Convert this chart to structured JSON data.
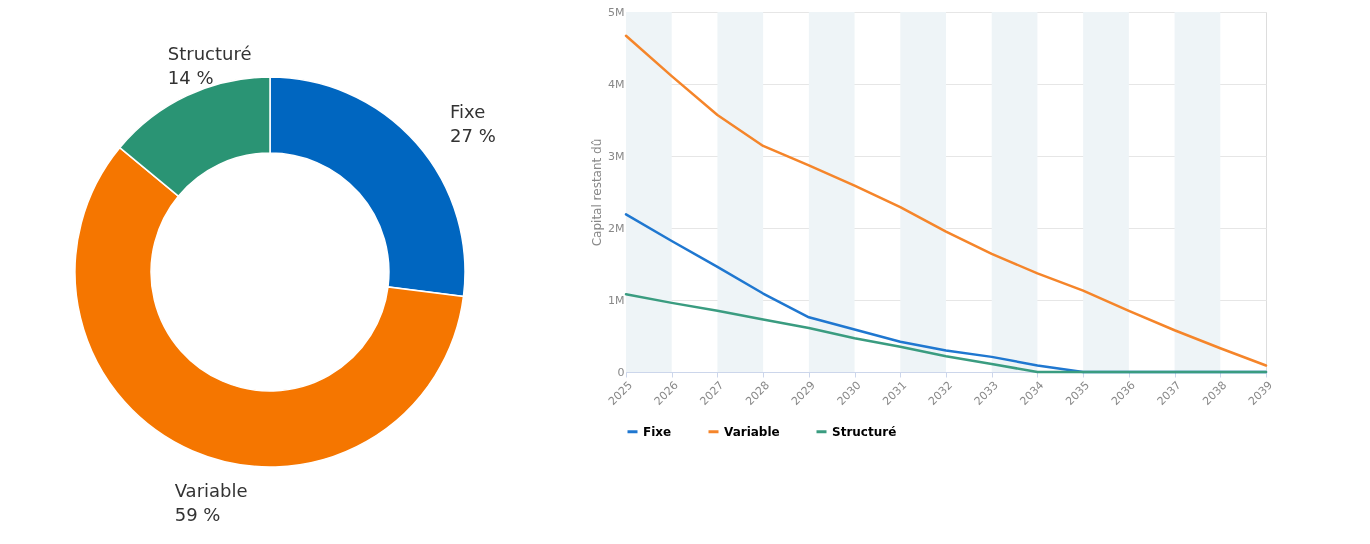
{
  "chart_data": [
    {
      "type": "donut",
      "categories": [
        "Fixe",
        "Variable",
        "Structuré"
      ],
      "values": [
        27,
        59,
        14
      ],
      "value_labels": [
        "27 %",
        "59 %",
        "14 %"
      ],
      "colors": [
        "#0066c0",
        "#f57600",
        "#2a9474"
      ],
      "legend": false
    },
    {
      "type": "line",
      "ylabel": "Capital restant dû",
      "x": [
        2025,
        2026,
        2027,
        2028,
        2029,
        2030,
        2031,
        2032,
        2033,
        2034,
        2035,
        2036,
        2037,
        2038,
        2039
      ],
      "series": [
        {
          "name": "Fixe",
          "color": "#1f77d0",
          "values": [
            2190000,
            1820000,
            1460000,
            1090000,
            760000,
            590000,
            420000,
            300000,
            210000,
            90000,
            0,
            0,
            0,
            0,
            0
          ]
        },
        {
          "name": "Variable",
          "color": "#f5852a",
          "values": [
            4670000,
            4110000,
            3570000,
            3140000,
            2870000,
            2590000,
            2290000,
            1950000,
            1640000,
            1370000,
            1130000,
            850000,
            580000,
            330000,
            90000
          ]
        },
        {
          "name": "Structuré",
          "color": "#3a9c80",
          "values": [
            1080000,
            960000,
            850000,
            730000,
            610000,
            470000,
            350000,
            220000,
            110000,
            0,
            0,
            0,
            0,
            0,
            0
          ]
        }
      ],
      "xlim": [
        2025,
        2039
      ],
      "xticks": [
        2025,
        2026,
        2027,
        2028,
        2029,
        2030,
        2031,
        2032,
        2033,
        2034,
        2035,
        2036,
        2037,
        2038,
        2039
      ],
      "ylim": [
        0,
        5000000
      ],
      "yticks": [
        {
          "value": 0,
          "label": "0"
        },
        {
          "value": 1000000,
          "label": "1M"
        },
        {
          "value": 2000000,
          "label": "2M"
        },
        {
          "value": 3000000,
          "label": "3M"
        },
        {
          "value": 4000000,
          "label": "4M"
        },
        {
          "value": 5000000,
          "label": "5M"
        }
      ],
      "bands": [
        {
          "axis": "x",
          "from": 2025,
          "to": 2026,
          "color": "#eef4f7"
        },
        {
          "axis": "x",
          "from": 2027,
          "to": 2028,
          "color": "#eef4f7"
        },
        {
          "axis": "x",
          "from": 2029,
          "to": 2030,
          "color": "#eef4f7"
        },
        {
          "axis": "x",
          "from": 2031,
          "to": 2032,
          "color": "#eef4f7"
        },
        {
          "axis": "x",
          "from": 2033,
          "to": 2034,
          "color": "#eef4f7"
        },
        {
          "axis": "x",
          "from": 2035,
          "to": 2036,
          "color": "#eef4f7"
        },
        {
          "axis": "x",
          "from": 2037,
          "to": 2038,
          "color": "#eef4f7"
        }
      ],
      "grid": "y",
      "legend": "bottom",
      "marker": "none",
      "line_style": "solid"
    }
  ]
}
